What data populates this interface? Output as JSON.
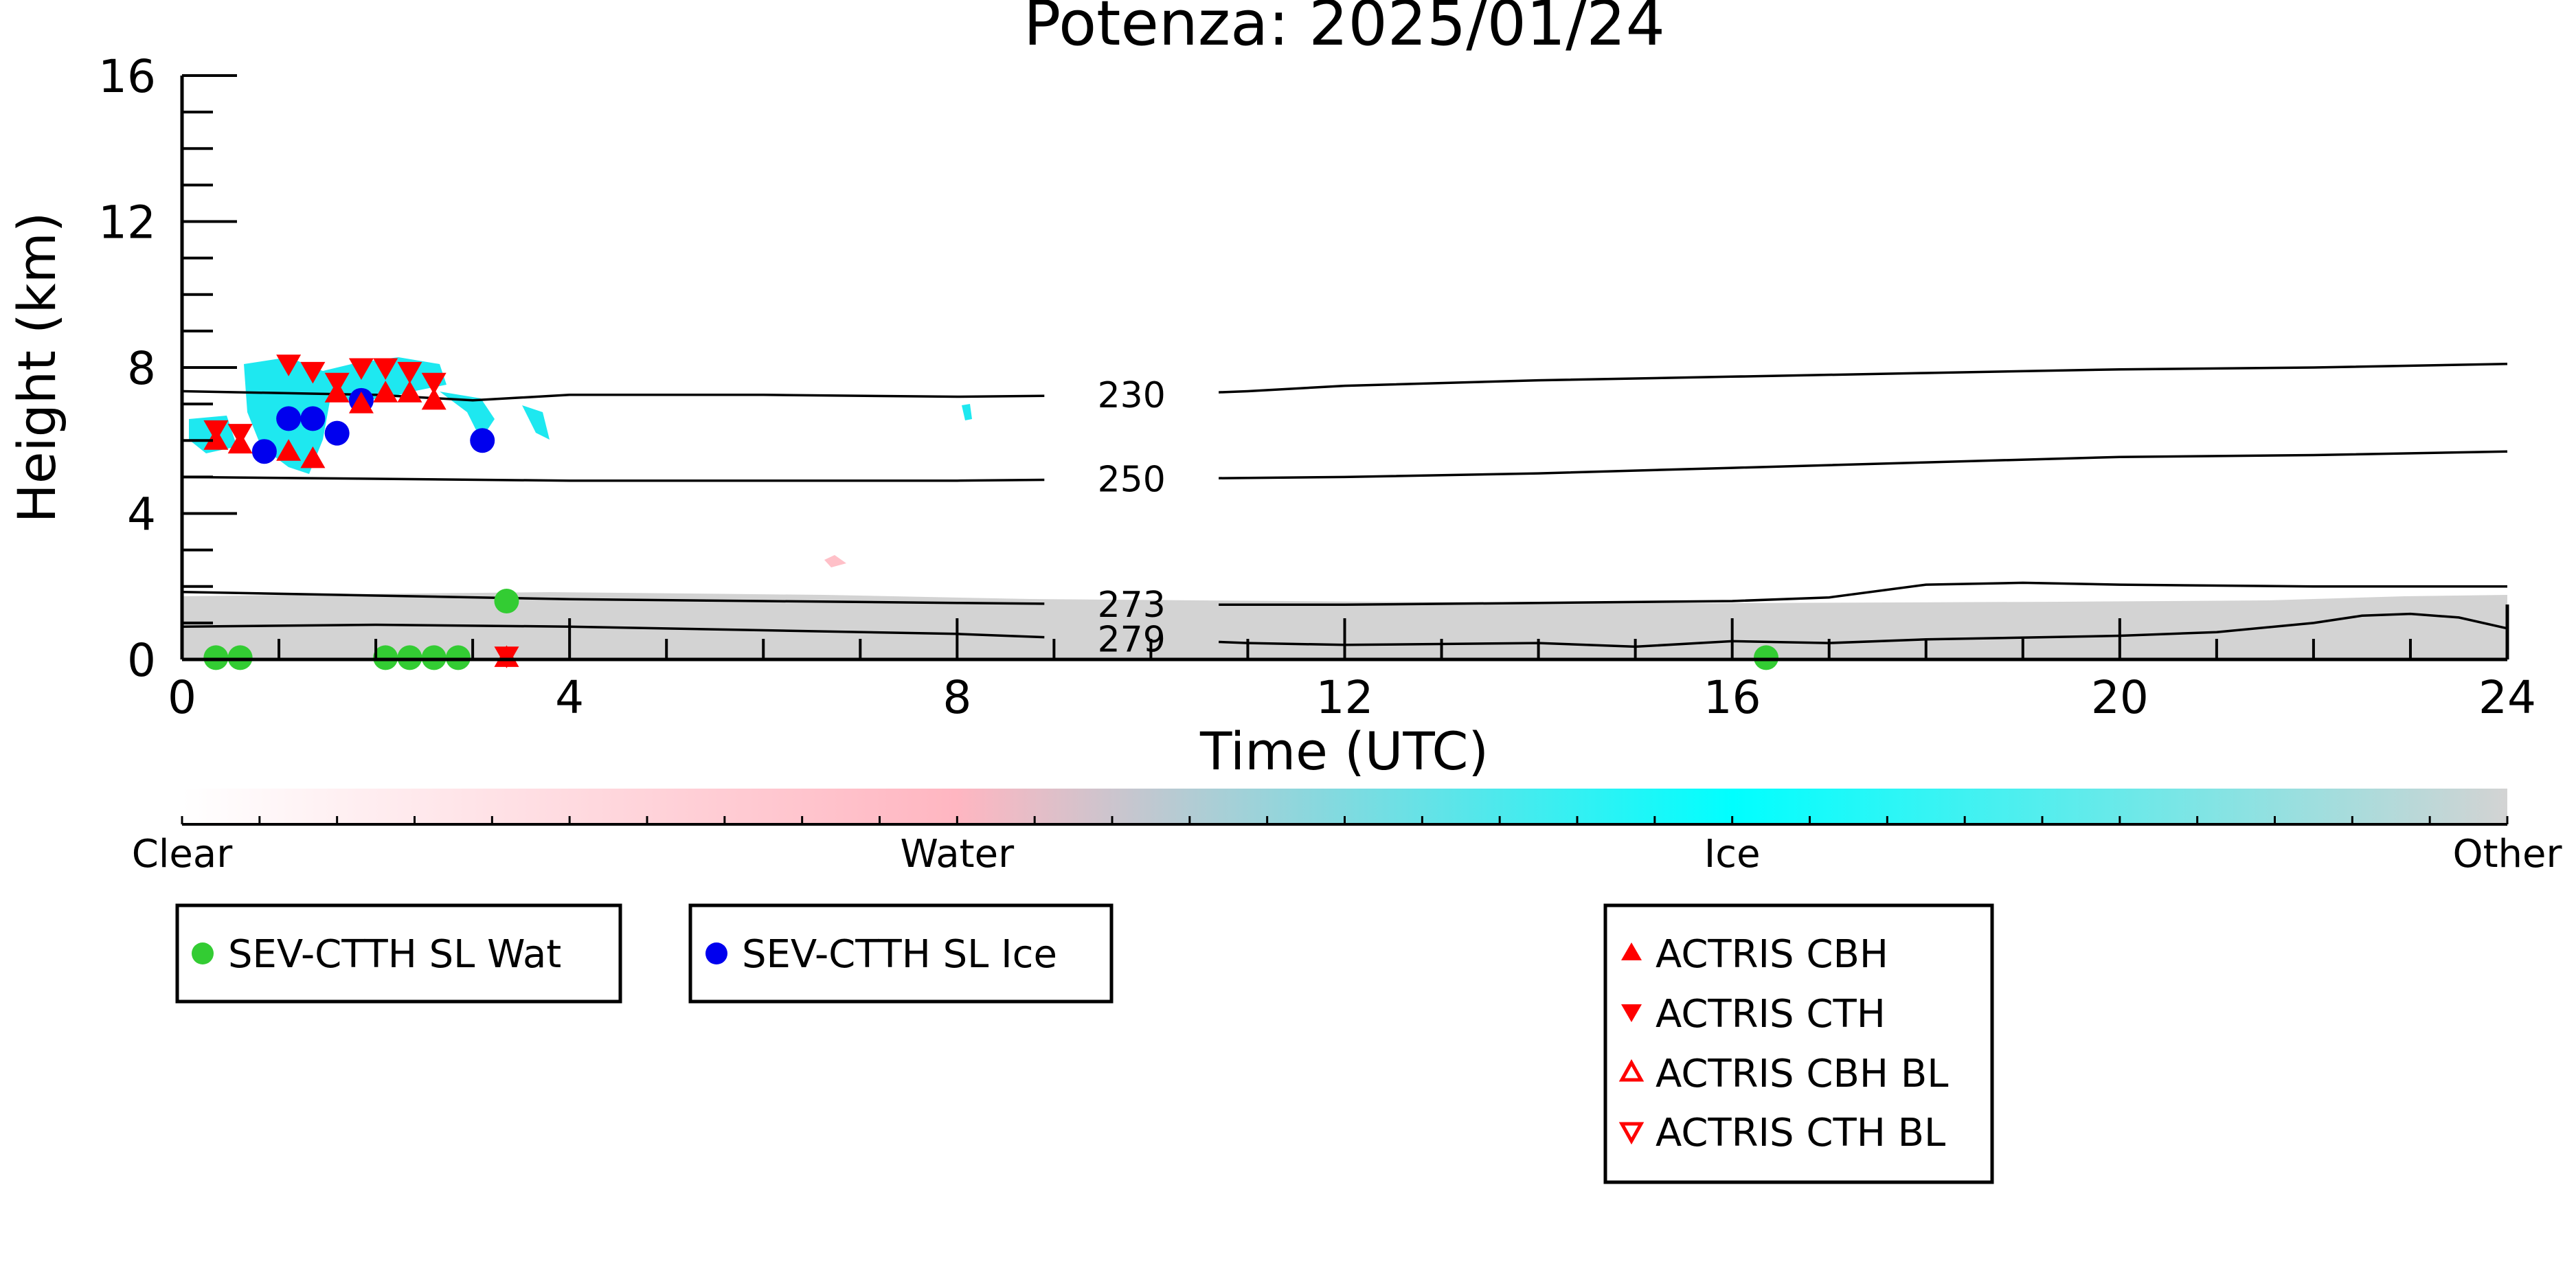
{
  "chart_data": {
    "type": "scatter",
    "title": "Potenza: 2025/01/24",
    "xlabel": "Time (UTC)",
    "ylabel": "Height (km)",
    "xlim": [
      0,
      24
    ],
    "ylim": [
      0,
      16
    ],
    "x_ticks": [
      "0",
      "4",
      "8",
      "12",
      "16",
      "20",
      "24"
    ],
    "y_ticks": [
      "0",
      "4",
      "8",
      "12",
      "16"
    ],
    "colorbar": {
      "labels": [
        "Clear",
        "Water",
        "Ice",
        "Other"
      ],
      "colors": [
        "#ffffff",
        "#ffb6c1",
        "#00ffff",
        "#d3d3d3"
      ]
    },
    "isotherms": [
      {
        "label": "230",
        "label_x": 9.8,
        "points": [
          [
            0,
            7.35
          ],
          [
            2,
            7.25
          ],
          [
            3,
            7.1
          ],
          [
            4,
            7.25
          ],
          [
            6,
            7.25
          ],
          [
            8,
            7.2
          ],
          [
            10,
            7.25
          ],
          [
            11,
            7.35
          ],
          [
            12,
            7.5
          ],
          [
            14,
            7.65
          ],
          [
            16,
            7.75
          ],
          [
            18,
            7.85
          ],
          [
            20,
            7.95
          ],
          [
            22,
            8.0
          ],
          [
            24,
            8.1
          ]
        ]
      },
      {
        "label": "250",
        "label_x": 9.8,
        "points": [
          [
            0,
            5.0
          ],
          [
            2,
            4.95
          ],
          [
            4,
            4.9
          ],
          [
            6,
            4.9
          ],
          [
            8,
            4.9
          ],
          [
            10,
            4.95
          ],
          [
            12,
            5.0
          ],
          [
            14,
            5.1
          ],
          [
            16,
            5.25
          ],
          [
            18,
            5.4
          ],
          [
            20,
            5.55
          ],
          [
            22,
            5.6
          ],
          [
            24,
            5.7
          ]
        ]
      },
      {
        "label": "273",
        "label_x": 9.8,
        "points": [
          [
            0,
            1.85
          ],
          [
            2,
            1.75
          ],
          [
            4,
            1.65
          ],
          [
            6,
            1.6
          ],
          [
            8,
            1.55
          ],
          [
            10,
            1.5
          ],
          [
            12,
            1.5
          ],
          [
            14,
            1.55
          ],
          [
            16,
            1.6
          ],
          [
            17,
            1.7
          ],
          [
            18,
            2.05
          ],
          [
            19,
            2.1
          ],
          [
            20,
            2.05
          ],
          [
            22,
            2.0
          ],
          [
            24,
            2.0
          ]
        ]
      },
      {
        "label": "279",
        "label_x": 9.8,
        "points": [
          [
            0,
            0.9
          ],
          [
            2,
            0.95
          ],
          [
            4,
            0.9
          ],
          [
            6,
            0.8
          ],
          [
            8,
            0.7
          ],
          [
            9,
            0.6
          ],
          [
            10,
            0.55
          ],
          [
            11,
            0.45
          ],
          [
            12,
            0.4
          ],
          [
            14,
            0.45
          ],
          [
            15,
            0.35
          ],
          [
            16,
            0.5
          ],
          [
            17,
            0.45
          ],
          [
            18,
            0.55
          ],
          [
            20,
            0.65
          ],
          [
            21,
            0.75
          ],
          [
            22,
            1.0
          ],
          [
            22.5,
            1.2
          ],
          [
            23,
            1.25
          ],
          [
            23.5,
            1.15
          ],
          [
            24,
            0.85
          ]
        ]
      }
    ],
    "series": [
      {
        "name": "SEV-CTTH SL Wat",
        "marker": "circle",
        "color": "#33cc33",
        "x": [
          0.35,
          0.6,
          2.1,
          2.35,
          2.6,
          2.85,
          3.35,
          16.35
        ],
        "y": [
          0.05,
          0.05,
          0.05,
          0.05,
          0.05,
          0.05,
          1.6,
          0.05
        ]
      },
      {
        "name": "SEV-CTTH SL Ice",
        "marker": "circle",
        "color": "#0000ee",
        "x": [
          0.85,
          1.1,
          1.35,
          1.6,
          1.85,
          3.1
        ],
        "y": [
          5.7,
          6.6,
          6.6,
          6.2,
          7.1,
          6.0
        ]
      },
      {
        "name": "ACTRIS CBH",
        "marker": "triangle-up",
        "color": "#ff0000",
        "x": [
          0.35,
          0.6,
          1.1,
          1.35,
          1.6,
          1.85,
          2.1,
          2.35,
          2.6
        ],
        "y": [
          6.0,
          5.9,
          5.7,
          5.5,
          7.3,
          7.0,
          7.3,
          7.3,
          7.1
        ]
      },
      {
        "name": "ACTRIS CTH",
        "marker": "triangle-down",
        "color": "#ff0000",
        "x": [
          0.35,
          0.6,
          1.1,
          1.35,
          1.6,
          1.85,
          2.1,
          2.35,
          2.6
        ],
        "y": [
          6.3,
          6.2,
          8.1,
          7.9,
          7.6,
          8.0,
          8.0,
          7.9,
          7.6
        ]
      },
      {
        "name": "ACTRIS CBH BL",
        "marker": "triangle-up-open",
        "color": "#ff0000",
        "x": [],
        "y": []
      },
      {
        "name": "ACTRIS CTH BL",
        "marker": "triangle-down-open",
        "color": "#ff0000",
        "x": [],
        "y": []
      }
    ],
    "extra_points": [
      {
        "marker": "triangle-up",
        "color": "#ff0000",
        "x": 3.35,
        "y": 0.05
      },
      {
        "marker": "triangle-down",
        "color": "#ff0000",
        "x": 3.35,
        "y": 0.1
      }
    ],
    "legends": [
      {
        "position": "bottom-left",
        "entries": [
          "SEV-CTTH SL Wat"
        ]
      },
      {
        "position": "bottom-center-left",
        "entries": [
          "SEV-CTTH SL Ice"
        ]
      },
      {
        "position": "bottom-center-right",
        "entries": [
          "ACTRIS CBH",
          "ACTRIS CTH",
          "ACTRIS CBH BL",
          "ACTRIS CTH BL"
        ]
      }
    ],
    "grid": false
  }
}
